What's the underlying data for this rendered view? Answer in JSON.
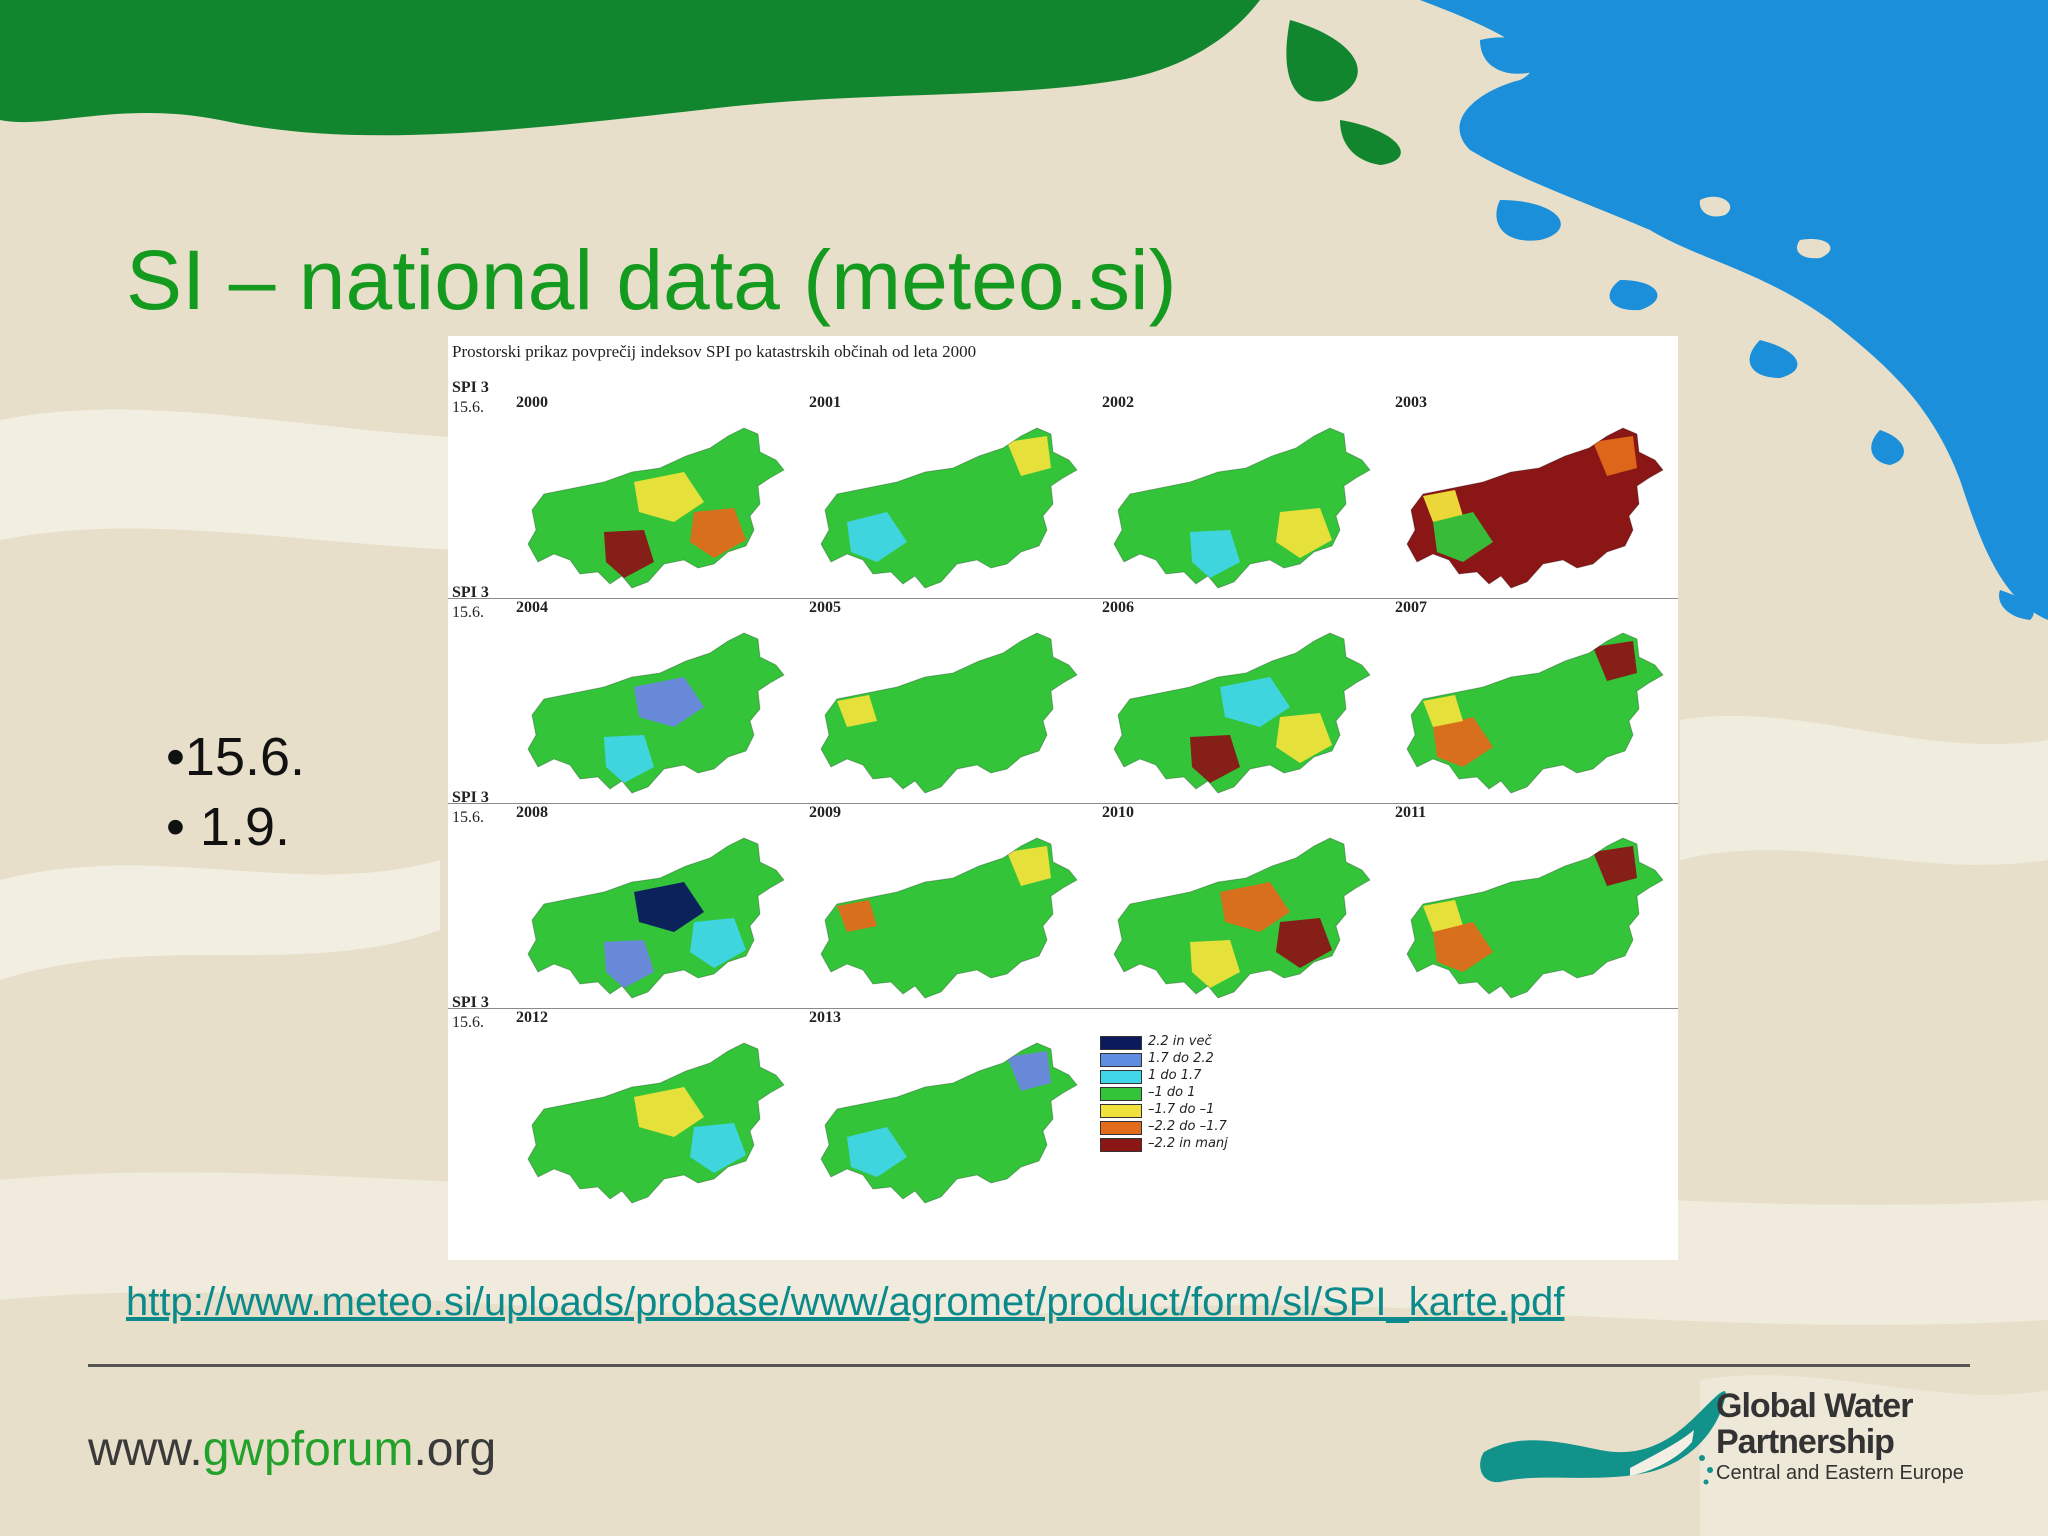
{
  "slide": {
    "title": "SI – national data (meteo.si)",
    "bullets": [
      "•15.6.",
      "• 1.9."
    ],
    "link": "http://www.meteo.si/uploads/probase/www/agromet/product/form/sl/SPI_karte.pdf",
    "site": {
      "prefix": "www.",
      "highlight": "gwpforum",
      "suffix": ".org"
    },
    "logo": {
      "line1": "Global Water",
      "line2": "Partnership",
      "line3": "Central and Eastern Europe"
    }
  },
  "figure": {
    "caption": "Prostorski prikaz povprečij indeksov SPI po katastrskih občinah od leta 2000",
    "spi_label": "SPI 3",
    "date_label": "15.6.",
    "panels": [
      {
        "year": "2000",
        "dominant": "green",
        "accents": [
          "yellow",
          "orange",
          "darkred"
        ]
      },
      {
        "year": "2001",
        "dominant": "green",
        "accents": [
          "cyan",
          "yellow"
        ]
      },
      {
        "year": "2002",
        "dominant": "green",
        "accents": [
          "yellow",
          "cyan"
        ]
      },
      {
        "year": "2003",
        "dominant": "darkred",
        "accents": [
          "orange",
          "yellow",
          "green"
        ]
      },
      {
        "year": "2004",
        "dominant": "green",
        "accents": [
          "cyan",
          "blue"
        ]
      },
      {
        "year": "2005",
        "dominant": "green",
        "accents": [
          "yellow"
        ]
      },
      {
        "year": "2006",
        "dominant": "green",
        "accents": [
          "cyan",
          "yellow",
          "darkred"
        ]
      },
      {
        "year": "2007",
        "dominant": "green",
        "accents": [
          "orange",
          "darkred",
          "yellow"
        ]
      },
      {
        "year": "2008",
        "dominant": "green",
        "accents": [
          "cyan",
          "blue",
          "navy"
        ]
      },
      {
        "year": "2009",
        "dominant": "green",
        "accents": [
          "yellow",
          "orange"
        ]
      },
      {
        "year": "2010",
        "dominant": "green",
        "accents": [
          "yellow",
          "orange",
          "darkred"
        ]
      },
      {
        "year": "2011",
        "dominant": "green",
        "accents": [
          "yellow",
          "orange",
          "darkred"
        ]
      },
      {
        "year": "2012",
        "dominant": "green",
        "accents": [
          "yellow",
          "cyan"
        ]
      },
      {
        "year": "2013",
        "dominant": "green",
        "accents": [
          "cyan",
          "blue"
        ]
      }
    ],
    "legend": [
      {
        "label": "2.2 in več",
        "color": "#0a1a5c"
      },
      {
        "label": "1.7 do 2.2",
        "color": "#5f8de0"
      },
      {
        "label": "1 do 1.7",
        "color": "#3fd6e8"
      },
      {
        "label": "–1 do 1",
        "color": "#33c43a"
      },
      {
        "label": "–1.7 do –1",
        "color": "#f0e23a"
      },
      {
        "label": "–2.2 do –1.7",
        "color": "#e26a1a"
      },
      {
        "label": "–2.2 in manj",
        "color": "#8a1616"
      }
    ],
    "colors": {
      "green": "#33c43a",
      "yellow": "#f0e23a",
      "orange": "#e26a1a",
      "darkred": "#8a1616",
      "cyan": "#3fd6e8",
      "blue": "#6a86e0",
      "navy": "#0a1a5c"
    }
  },
  "theme": {
    "title_color": "#139a1f",
    "link_color": "#0a8a8a",
    "bg": "#e7dfc9",
    "land_green": "#12862e",
    "water_blue": "#1b8fd9"
  }
}
